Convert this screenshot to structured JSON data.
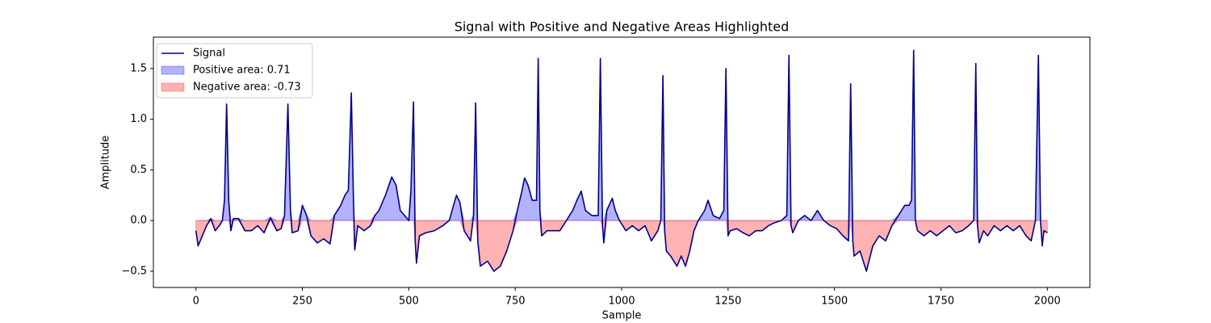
{
  "chart_data": {
    "type": "line",
    "title": "Signal with Positive and Negative Areas Highlighted",
    "xlabel": "Sample",
    "ylabel": "Amplitude",
    "x": [
      0,
      5,
      15,
      25,
      35,
      45,
      55,
      62,
      67,
      72,
      77,
      82,
      88,
      100,
      115,
      130,
      145,
      160,
      175,
      190,
      200,
      208,
      216,
      222,
      226,
      240,
      250,
      260,
      270,
      285,
      300,
      315,
      325,
      340,
      350,
      358,
      365,
      370,
      373,
      380,
      395,
      410,
      420,
      430,
      445,
      460,
      470,
      480,
      490,
      500,
      505,
      511,
      515,
      518,
      525,
      540,
      560,
      580,
      595,
      605,
      612,
      620,
      630,
      645,
      652,
      657,
      662,
      668,
      685,
      700,
      715,
      730,
      745,
      755,
      765,
      772,
      780,
      790,
      800,
      804,
      808,
      812,
      825,
      840,
      855,
      870,
      885,
      895,
      905,
      915,
      930,
      945,
      950,
      955,
      958,
      965,
      978,
      985,
      995,
      1010,
      1025,
      1040,
      1055,
      1070,
      1085,
      1092,
      1097,
      1101,
      1105,
      1115,
      1130,
      1140,
      1150,
      1160,
      1170,
      1180,
      1195,
      1203,
      1215,
      1230,
      1240,
      1245,
      1250,
      1255,
      1270,
      1285,
      1300,
      1315,
      1330,
      1345,
      1360,
      1375,
      1388,
      1393,
      1398,
      1402,
      1415,
      1430,
      1445,
      1460,
      1475,
      1490,
      1505,
      1520,
      1533,
      1538,
      1543,
      1546,
      1560,
      1575,
      1590,
      1605,
      1620,
      1635,
      1650,
      1665,
      1675,
      1681,
      1686,
      1690,
      1695,
      1710,
      1725,
      1740,
      1755,
      1770,
      1785,
      1800,
      1815,
      1827,
      1832,
      1836,
      1840,
      1850,
      1860,
      1875,
      1890,
      1905,
      1920,
      1935,
      1950,
      1962,
      1972,
      1979,
      1984,
      1988,
      1992,
      2000
    ],
    "series": [
      {
        "name": "Signal",
        "color": "#00008b",
        "values": [
          -0.1,
          -0.25,
          -0.15,
          -0.05,
          0.02,
          -0.1,
          -0.05,
          0,
          0.2,
          1.15,
          0.2,
          -0.1,
          0.02,
          0.02,
          -0.1,
          -0.1,
          -0.05,
          -0.12,
          0.03,
          -0.1,
          -0.08,
          0.05,
          1.15,
          0.1,
          -0.12,
          -0.1,
          0.15,
          0.05,
          -0.15,
          -0.22,
          -0.18,
          -0.23,
          0.05,
          0.15,
          0.25,
          0.3,
          1.26,
          0.2,
          -0.29,
          -0.05,
          -0.1,
          -0.05,
          0.05,
          0.1,
          0.25,
          0.43,
          0.35,
          0.1,
          0.05,
          0,
          0.3,
          1.17,
          -0.2,
          -0.42,
          -0.15,
          -0.12,
          -0.1,
          -0.05,
          0,
          0.15,
          0.25,
          0.18,
          -0.1,
          -0.2,
          0.05,
          1.16,
          -0.2,
          -0.45,
          -0.4,
          -0.5,
          -0.45,
          -0.3,
          -0.1,
          0.1,
          0.28,
          0.42,
          0.35,
          0.2,
          0.2,
          1.6,
          0.1,
          -0.15,
          -0.1,
          -0.1,
          -0.1,
          0,
          0.1,
          0.2,
          0.29,
          0.1,
          0.05,
          0.05,
          1.6,
          -0.05,
          -0.22,
          0.1,
          0.22,
          0.1,
          0,
          -0.1,
          -0.05,
          -0.1,
          -0.05,
          -0.2,
          -0.1,
          0,
          1.43,
          -0.1,
          -0.3,
          -0.35,
          -0.45,
          -0.35,
          -0.45,
          -0.3,
          -0.1,
          0,
          0.1,
          0.2,
          0.05,
          0.02,
          0.1,
          1.5,
          -0.15,
          -0.1,
          -0.08,
          -0.12,
          -0.15,
          -0.1,
          -0.1,
          -0.05,
          -0.02,
          0,
          0.05,
          1.63,
          -0.05,
          -0.12,
          0,
          0.05,
          0,
          0.1,
          0,
          -0.05,
          -0.08,
          -0.15,
          -0.2,
          1.35,
          -0.2,
          -0.35,
          -0.3,
          -0.5,
          -0.25,
          -0.15,
          -0.2,
          -0.05,
          0.05,
          0.15,
          0.15,
          0.2,
          1.68,
          0,
          -0.1,
          -0.15,
          -0.1,
          -0.15,
          -0.1,
          -0.05,
          -0.12,
          -0.1,
          -0.05,
          0,
          1.55,
          -0.05,
          -0.22,
          -0.1,
          -0.15,
          -0.05,
          -0.1,
          -0.05,
          -0.1,
          -0.05,
          -0.15,
          -0.2,
          0,
          1.63,
          0,
          -0.25,
          -0.1,
          -0.12
        ]
      }
    ],
    "areas": [
      {
        "name": "Positive area: 0.71",
        "color": "#0000ff"
      },
      {
        "name": "Negative area: -0.73",
        "color": "#ff0000"
      }
    ],
    "xlim": [
      -100,
      2100
    ],
    "ylim": [
      -0.66,
      1.81
    ],
    "xticks": [
      0,
      250,
      500,
      750,
      1000,
      1250,
      1500,
      1750,
      2000
    ],
    "yticks": [
      {
        "value": -0.5,
        "label": "−0.5"
      },
      {
        "value": 0,
        "label": "0.0"
      },
      0.5,
      {
        "value": 1,
        "label": "1.0"
      },
      1.5
    ],
    "legend": "upper left"
  }
}
